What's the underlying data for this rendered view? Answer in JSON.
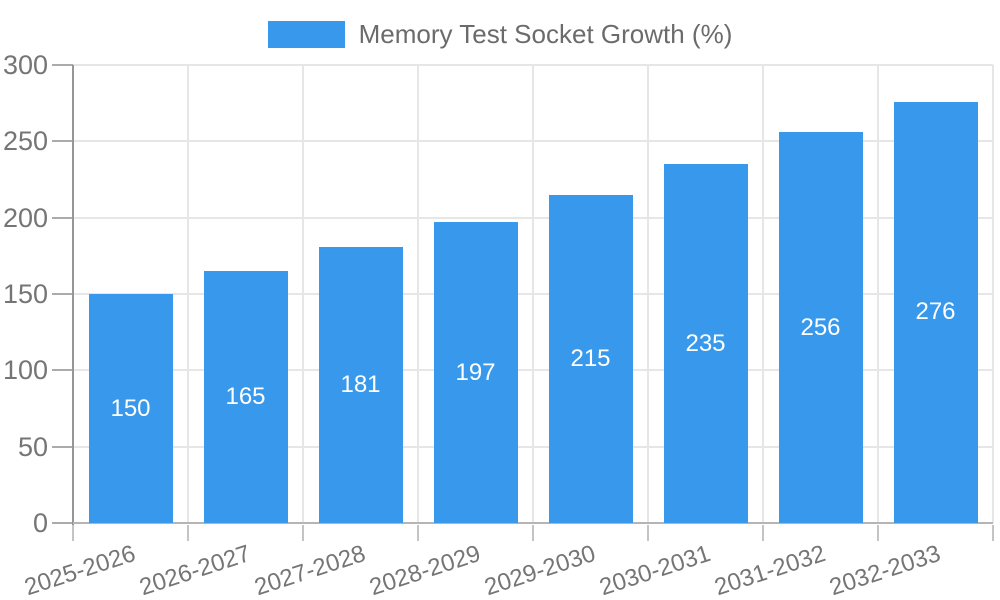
{
  "chart_data": {
    "type": "bar",
    "series_name": "Memory Test Socket Growth (%)",
    "categories": [
      "2025-2026",
      "2026-2027",
      "2027-2028",
      "2028-2029",
      "2029-2030",
      "2030-2031",
      "2031-2032",
      "2032-2033"
    ],
    "values": [
      150,
      165,
      181,
      197,
      215,
      235,
      256,
      276
    ],
    "ylim": [
      0,
      300
    ],
    "yticks": [
      0,
      50,
      100,
      150,
      200,
      250,
      300
    ],
    "grid": true,
    "legend_position": "top",
    "value_labels": "inside-center",
    "x_label_rotation_deg": -18,
    "colors": {
      "bar": "#3899ec",
      "bar_label": "#ffffff",
      "axis_text": "#757575",
      "legend_text": "#6b6b6b",
      "grid_line": "#e6e6e6",
      "axis_line_y": "#969696",
      "axis_line_x": "#b5b5b5",
      "tick_y": "#ababab",
      "tick_x": "#c4c4c4",
      "background": "#ffffff"
    }
  }
}
